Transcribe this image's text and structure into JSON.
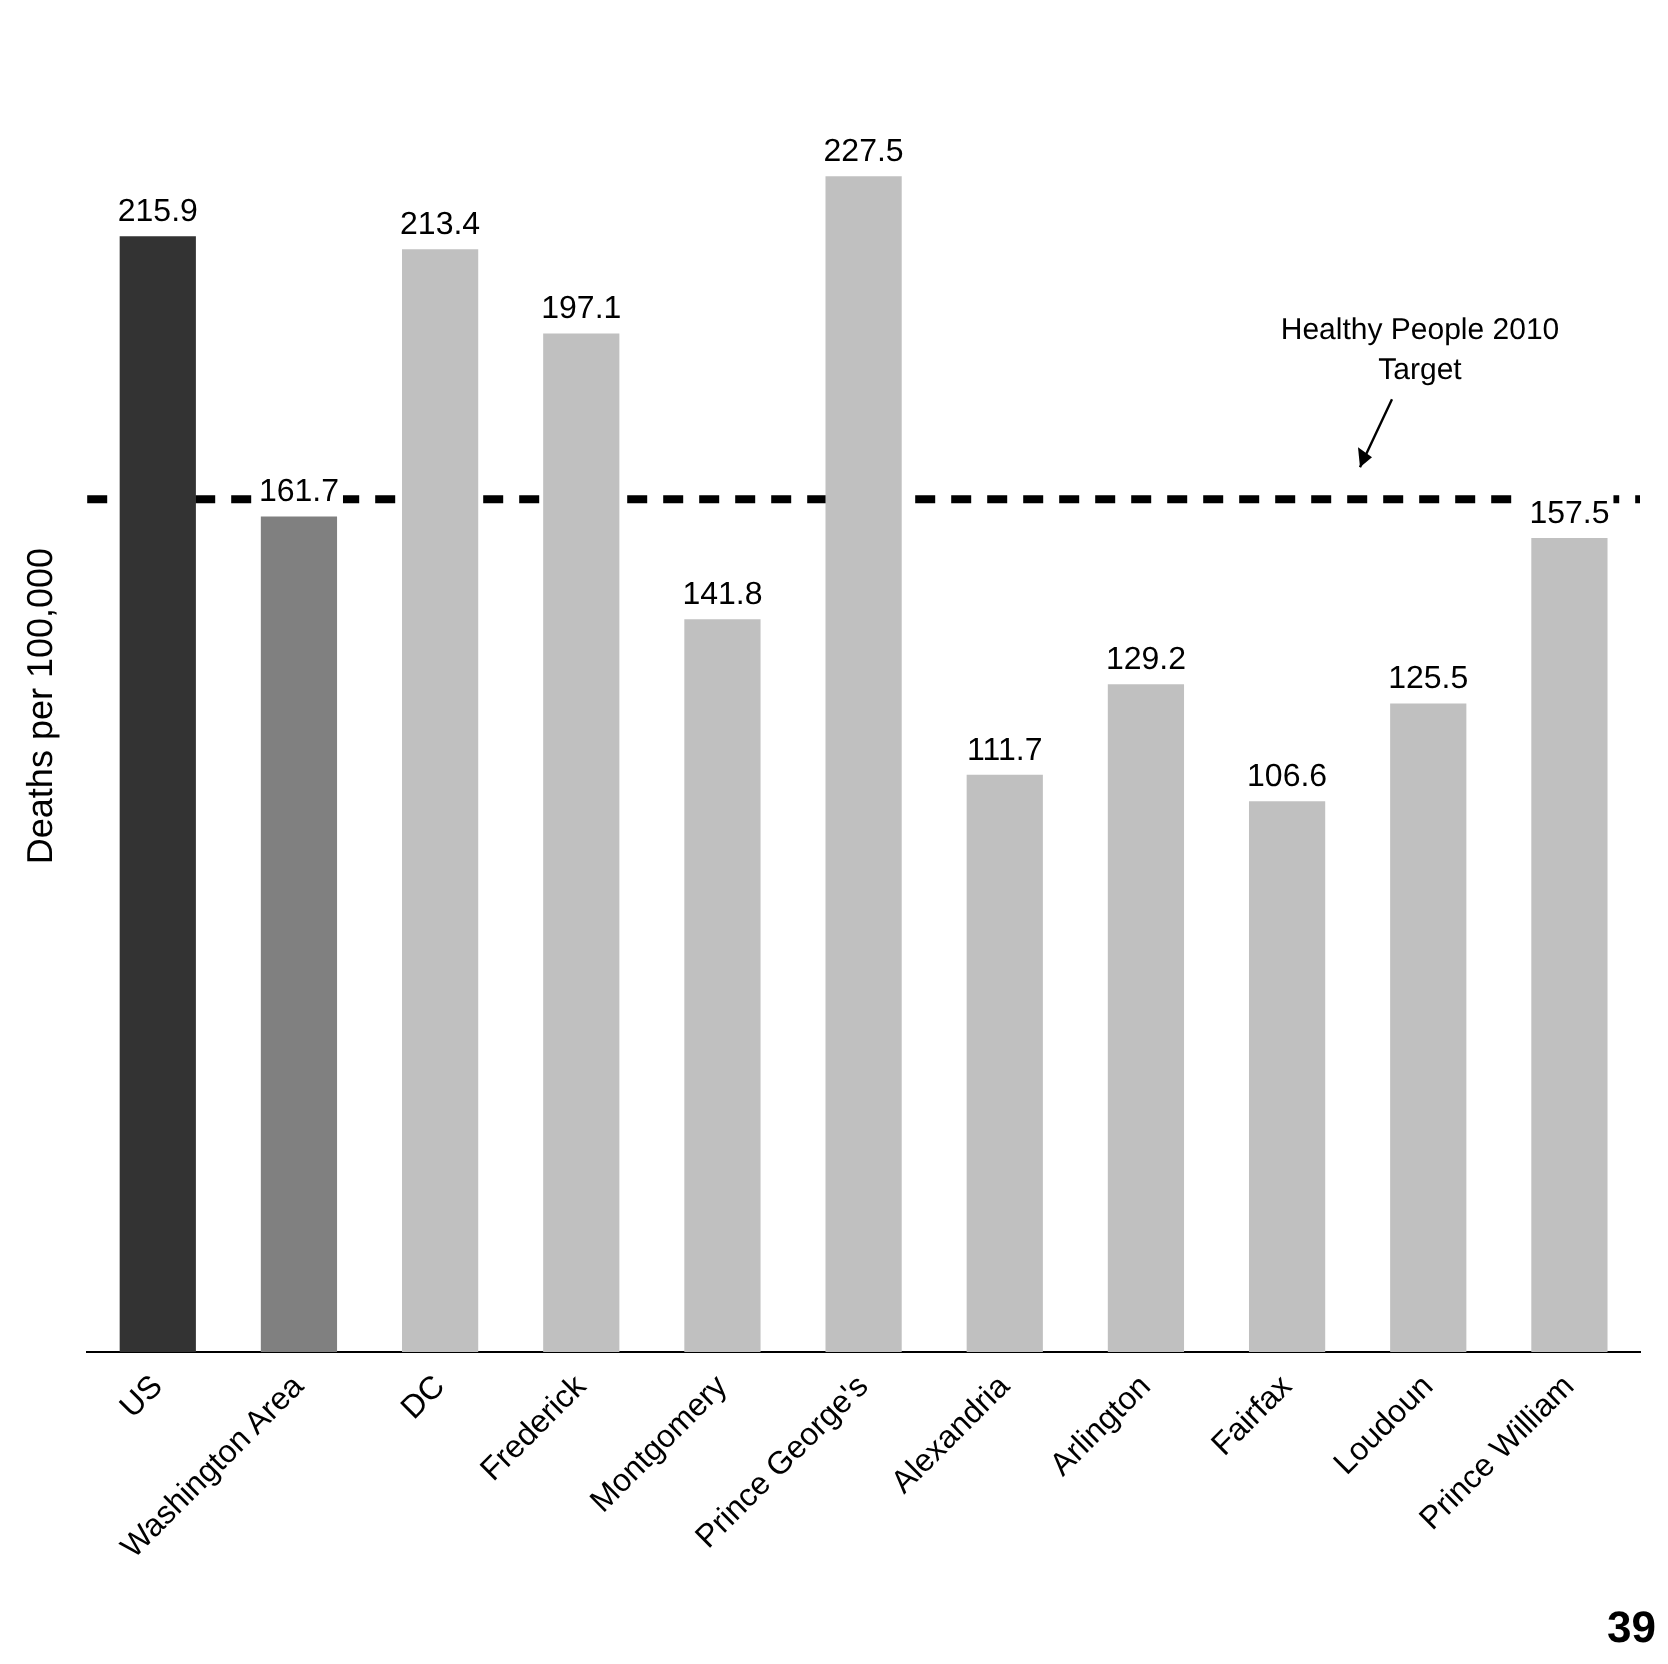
{
  "chart_data": {
    "type": "bar",
    "ylabel": "Deaths per 100,000",
    "categories": [
      "US",
      "Washington Area",
      "DC",
      "Frederick",
      "Montgomery",
      "Prince George's",
      "Alexandria",
      "Arlington",
      "Fairfax",
      "Loudoun",
      "Prince William"
    ],
    "values": [
      215.9,
      161.7,
      213.4,
      197.1,
      141.8,
      227.5,
      111.7,
      129.2,
      106.6,
      125.5,
      157.5
    ],
    "colors": [
      "#333333",
      "#808080",
      "#c0c0c0",
      "#c0c0c0",
      "#c0c0c0",
      "#c0c0c0",
      "#c0c0c0",
      "#c0c0c0",
      "#c0c0c0",
      "#c0c0c0",
      "#c0c0c0"
    ],
    "data_labels": true,
    "ref_lines": [
      {
        "axis": "y",
        "value": 165,
        "label": "Healthy People 2010 Target",
        "color": "#000000",
        "line_style": "dashed"
      }
    ],
    "annotations": [
      "39"
    ],
    "grid": false,
    "legend": false
  }
}
